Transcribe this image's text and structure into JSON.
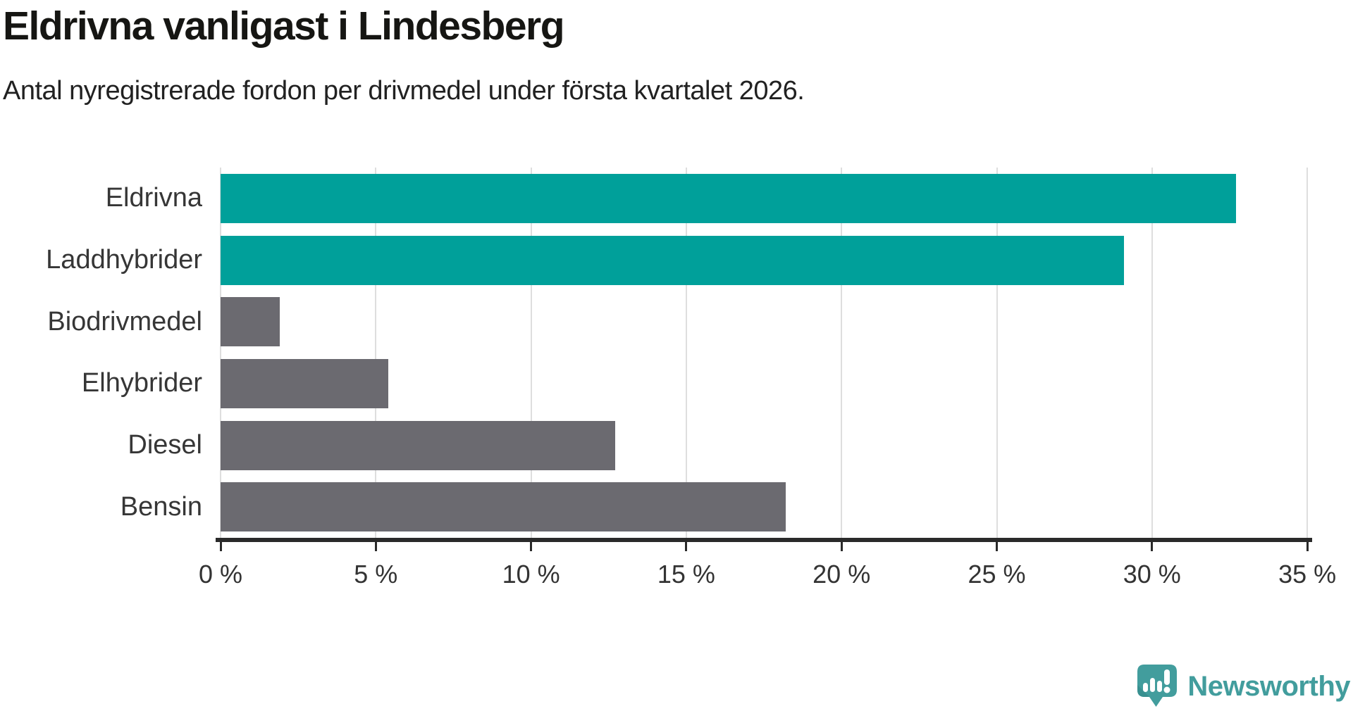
{
  "header": {
    "title": "Eldrivna vanligast i Lindesberg",
    "subtitle": "Antal nyregistrerade fordon per drivmedel under första kvartalet 2026."
  },
  "chart_data": {
    "type": "bar",
    "orientation": "horizontal",
    "title": "Eldrivna vanligast i Lindesberg",
    "subtitle": "Antal nyregistrerade fordon per drivmedel under första kvartalet 2026.",
    "categories": [
      "Eldrivna",
      "Laddhybrider",
      "Biodrivmedel",
      "Elhybrider",
      "Diesel",
      "Bensin"
    ],
    "values": [
      32.7,
      29.1,
      1.9,
      5.4,
      12.7,
      18.2
    ],
    "unit": "%",
    "bar_colors": [
      "#00a09a",
      "#00a09a",
      "#6b6a70",
      "#6b6a70",
      "#6b6a70",
      "#6b6a70"
    ],
    "xlabel": "",
    "ylabel": "",
    "xlim": [
      0,
      35.5
    ],
    "x_ticks": [
      0,
      5,
      10,
      15,
      20,
      25,
      30,
      35
    ],
    "x_tick_labels": [
      "0 %",
      "5 %",
      "10 %",
      "15 %",
      "20 %",
      "25 %",
      "30 %",
      "35 %"
    ],
    "grid": "vertical-only",
    "legend": "none"
  },
  "colors": {
    "accent_teal": "#00a09a",
    "bar_gray": "#6b6a70",
    "gridline": "#dedede",
    "axis": "#2a2a2a",
    "title_text": "#161613",
    "subtitle_text": "#212121",
    "label_text": "#363636",
    "brand_teal": "#429d9d"
  },
  "branding": {
    "logo_text": "Newsworthy",
    "logo_icon": "newsworthy-speech-bubble-bar-chart-icon"
  }
}
